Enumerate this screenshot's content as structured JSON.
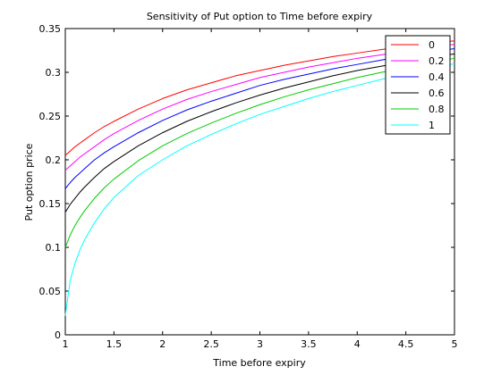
{
  "chart_data": {
    "type": "line",
    "title": "Sensitivity of Put option to Time before expiry",
    "xlabel": "Time before expiry",
    "ylabel": "Put option price",
    "xlim": [
      1,
      5
    ],
    "ylim": [
      0,
      0.35
    ],
    "x_ticks": [
      1,
      1.5,
      2,
      2.5,
      3,
      3.5,
      4,
      4.5,
      5
    ],
    "x_tick_labels": [
      "1",
      "1.5",
      "2",
      "2.5",
      "3",
      "3.5",
      "4",
      "4.5",
      "5"
    ],
    "y_ticks": [
      0,
      0.05,
      0.1,
      0.15,
      0.2,
      0.25,
      0.3,
      0.35
    ],
    "y_tick_labels": [
      "0",
      "0.05",
      "0.1",
      "0.15",
      "0.2",
      "0.25",
      "0.3",
      "0.35"
    ],
    "grid": false,
    "legend_position": "top-right",
    "x": [
      1,
      1.05,
      1.1,
      1.15,
      1.2,
      1.3,
      1.4,
      1.5,
      1.75,
      2,
      2.25,
      2.5,
      2.75,
      3,
      3.25,
      3.5,
      3.75,
      4,
      4.25,
      4.5,
      4.75,
      5
    ],
    "series": [
      {
        "name": "0",
        "color": "#ff0000",
        "values": [
          0.205,
          0.21,
          0.215,
          0.219,
          0.223,
          0.231,
          0.238,
          0.244,
          0.258,
          0.27,
          0.28,
          0.288,
          0.296,
          0.302,
          0.308,
          0.313,
          0.318,
          0.322,
          0.326,
          0.33,
          0.333,
          0.336
        ]
      },
      {
        "name": "0.2",
        "color": "#ff00ff",
        "values": [
          0.188,
          0.193,
          0.198,
          0.203,
          0.207,
          0.215,
          0.223,
          0.23,
          0.245,
          0.258,
          0.269,
          0.278,
          0.286,
          0.294,
          0.3,
          0.306,
          0.311,
          0.316,
          0.32,
          0.324,
          0.328,
          0.332
        ]
      },
      {
        "name": "0.4",
        "color": "#0000ff",
        "values": [
          0.167,
          0.174,
          0.18,
          0.185,
          0.19,
          0.2,
          0.208,
          0.215,
          0.231,
          0.245,
          0.257,
          0.267,
          0.276,
          0.285,
          0.292,
          0.298,
          0.304,
          0.309,
          0.314,
          0.319,
          0.323,
          0.327
        ]
      },
      {
        "name": "0.6",
        "color": "#000000",
        "values": [
          0.14,
          0.149,
          0.156,
          0.163,
          0.169,
          0.18,
          0.19,
          0.198,
          0.216,
          0.231,
          0.244,
          0.255,
          0.265,
          0.274,
          0.282,
          0.289,
          0.296,
          0.302,
          0.307,
          0.312,
          0.317,
          0.321
        ]
      },
      {
        "name": "0.8",
        "color": "#00cc00",
        "values": [
          0.1,
          0.114,
          0.125,
          0.134,
          0.142,
          0.156,
          0.168,
          0.178,
          0.199,
          0.216,
          0.23,
          0.242,
          0.253,
          0.263,
          0.272,
          0.28,
          0.287,
          0.294,
          0.3,
          0.305,
          0.311,
          0.316
        ]
      },
      {
        "name": "1",
        "color": "#00ffff",
        "values": [
          0.022,
          0.062,
          0.082,
          0.097,
          0.109,
          0.128,
          0.144,
          0.157,
          0.182,
          0.2,
          0.216,
          0.229,
          0.241,
          0.252,
          0.261,
          0.27,
          0.278,
          0.285,
          0.292,
          0.298,
          0.304,
          0.31
        ]
      }
    ]
  }
}
